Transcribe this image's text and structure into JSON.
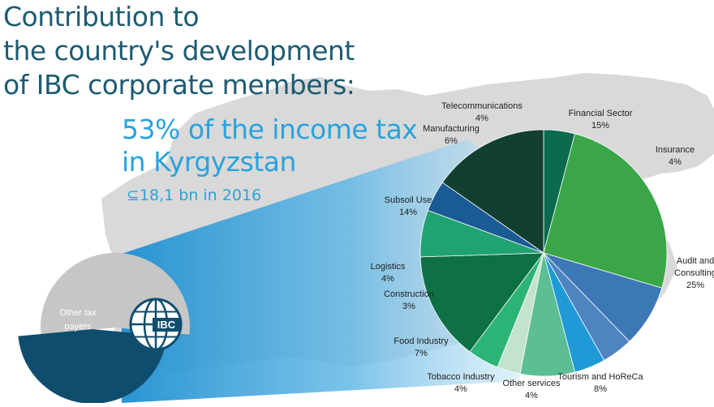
{
  "title_lines": [
    "Contribution to",
    "the country's development",
    "of IBC corporate members:"
  ],
  "headline_lines": [
    "53% of the income tax",
    "in Kyrgyzstan"
  ],
  "subline": "⊆18,1 bn in 2016",
  "other_tax_label": [
    "Other tax",
    "payers"
  ],
  "logo_text": "IBC",
  "colors": {
    "title": "#1d5b73",
    "accent": "#29a3dc",
    "map": "#d9d9d9",
    "outer_other": "#0f4d6e",
    "outer_ibc": "#c6c6c6"
  },
  "chart_data": {
    "type": "pie",
    "start_angle_deg": 0,
    "direction": "clockwise",
    "slices": [
      {
        "label": "Insurance",
        "value": 4,
        "value_label": "4%",
        "color": "#0c6b4e"
      },
      {
        "label": "Audit and Consulting",
        "label_lines": [
          "Audit and",
          "Consulting"
        ],
        "value": 25,
        "value_label": "25%",
        "color": "#3aa648"
      },
      {
        "label": "Tourism and HoReCa",
        "value": 8,
        "value_label": "8%",
        "color": "#3d78b6"
      },
      {
        "label": "Other services",
        "value": 4,
        "value_label": "4%",
        "color": "#4e84c0"
      },
      {
        "label": "Tobacco Industry",
        "value": 4,
        "value_label": "4%",
        "color": "#1f9ad7"
      },
      {
        "label": "Food Industry",
        "value": 7,
        "value_label": "7%",
        "color": "#5bbe94"
      },
      {
        "label": "Construction",
        "value": 3,
        "value_label": "3%",
        "color": "#c4e3cf"
      },
      {
        "label": "Logistics",
        "value": 4,
        "value_label": "4%",
        "color": "#2cb476"
      },
      {
        "label": "Subsoil Use",
        "value": 14,
        "value_label": "14%",
        "color": "#0d7046"
      },
      {
        "label": "Manufacturing",
        "value": 6,
        "value_label": "6%",
        "color": "#20a271"
      },
      {
        "label": "Telecommunications",
        "value": 4,
        "value_label": "4%",
        "color": "#1a5b96"
      },
      {
        "label": "Financial Sector",
        "value": 15,
        "value_label": "15%",
        "color": "#133f32"
      }
    ],
    "small_pie": {
      "slices": [
        {
          "label": "Other tax payers",
          "value": 47
        },
        {
          "label": "IBC corporate members",
          "value": 53
        }
      ]
    }
  }
}
